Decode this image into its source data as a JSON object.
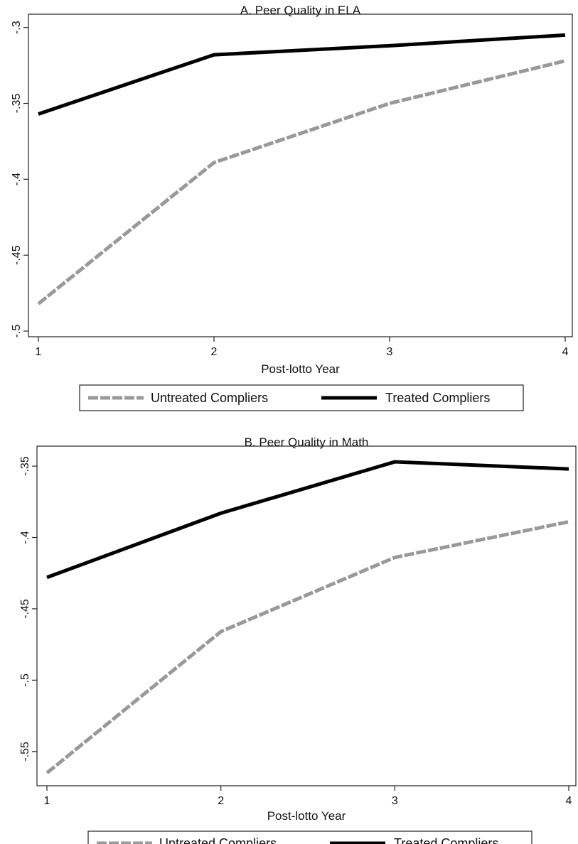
{
  "chart_data": [
    {
      "type": "line",
      "title": "A.  Peer Quality in ELA",
      "xlabel": "Post-lotto Year",
      "ylabel": "",
      "x": [
        1,
        2,
        3,
        4
      ],
      "x_ticks": [
        "1",
        "2",
        "3",
        "4"
      ],
      "xlim": [
        1,
        4
      ],
      "y_ticks": [
        "-.3",
        "-.35",
        "-.4",
        "-.45",
        "-.5"
      ],
      "y_tick_values": [
        -0.3,
        -0.35,
        -0.4,
        -0.45,
        -0.5
      ],
      "ylim": [
        -0.5,
        -0.295
      ],
      "grid": false,
      "legend_position": "bottom",
      "series": [
        {
          "name": "Untreated Compliers",
          "values": [
            -0.482,
            -0.389,
            -0.35,
            -0.322
          ],
          "color": "#999999",
          "style": "dashed"
        },
        {
          "name": "Treated Compliers",
          "values": [
            -0.357,
            -0.318,
            -0.312,
            -0.305
          ],
          "color": "#000000",
          "style": "solid"
        }
      ]
    },
    {
      "type": "line",
      "title": "B.  Peer Quality in Math",
      "xlabel": "Post-lotto Year",
      "ylabel": "",
      "x": [
        1,
        2,
        3,
        4
      ],
      "x_ticks": [
        "1",
        "2",
        "3",
        "4"
      ],
      "xlim": [
        1,
        4
      ],
      "y_ticks": [
        "-.35",
        "-.4",
        "-.45",
        "-.5",
        "-.55"
      ],
      "y_tick_values": [
        -0.35,
        -0.4,
        -0.45,
        -0.5,
        -0.55
      ],
      "ylim": [
        -0.57,
        -0.34
      ],
      "grid": false,
      "legend_position": "bottom",
      "series": [
        {
          "name": "Untreated Compliers",
          "values": [
            -0.565,
            -0.466,
            -0.414,
            -0.389
          ],
          "color": "#999999",
          "style": "dashed"
        },
        {
          "name": "Treated Compliers",
          "values": [
            -0.428,
            -0.383,
            -0.347,
            -0.352
          ],
          "color": "#000000",
          "style": "solid"
        }
      ]
    }
  ]
}
